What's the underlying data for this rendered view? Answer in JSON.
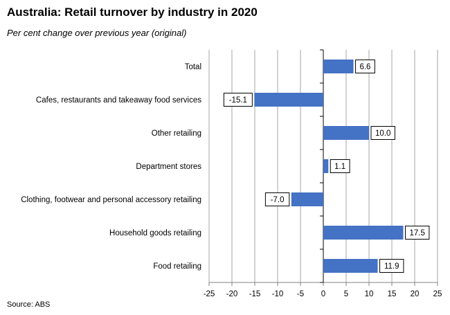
{
  "title": "Australia: Retail turnover by industry in 2020",
  "subtitle": "Per cent change over previous year (original)",
  "source": "Source: ABS",
  "chart_data": {
    "type": "bar",
    "orientation": "horizontal",
    "categories": [
      "Total",
      "Cafes, restaurants and takeaway food services",
      "Other retailing",
      "Department stores",
      "Clothing, footwear and personal accessory retailing",
      "Household goods retailing",
      "Food retailing"
    ],
    "values": [
      6.6,
      -15.1,
      10.0,
      1.1,
      -7.0,
      17.5,
      11.9
    ],
    "data_labels": [
      "6.6",
      "-15.1",
      "10.0",
      "1.1",
      "-7.0",
      "17.5",
      "11.9"
    ],
    "xlim": [
      -25,
      25
    ],
    "xticks": [
      "-25",
      "-20",
      "-15",
      "-10",
      "-5",
      "0",
      "5",
      "10",
      "15",
      "20",
      "25"
    ],
    "grid": "vertical",
    "bar_color": "#4472C4",
    "title": "Australia: Retail turnover by industry in 2020",
    "subtitle": "Per cent change over previous year (original)"
  }
}
